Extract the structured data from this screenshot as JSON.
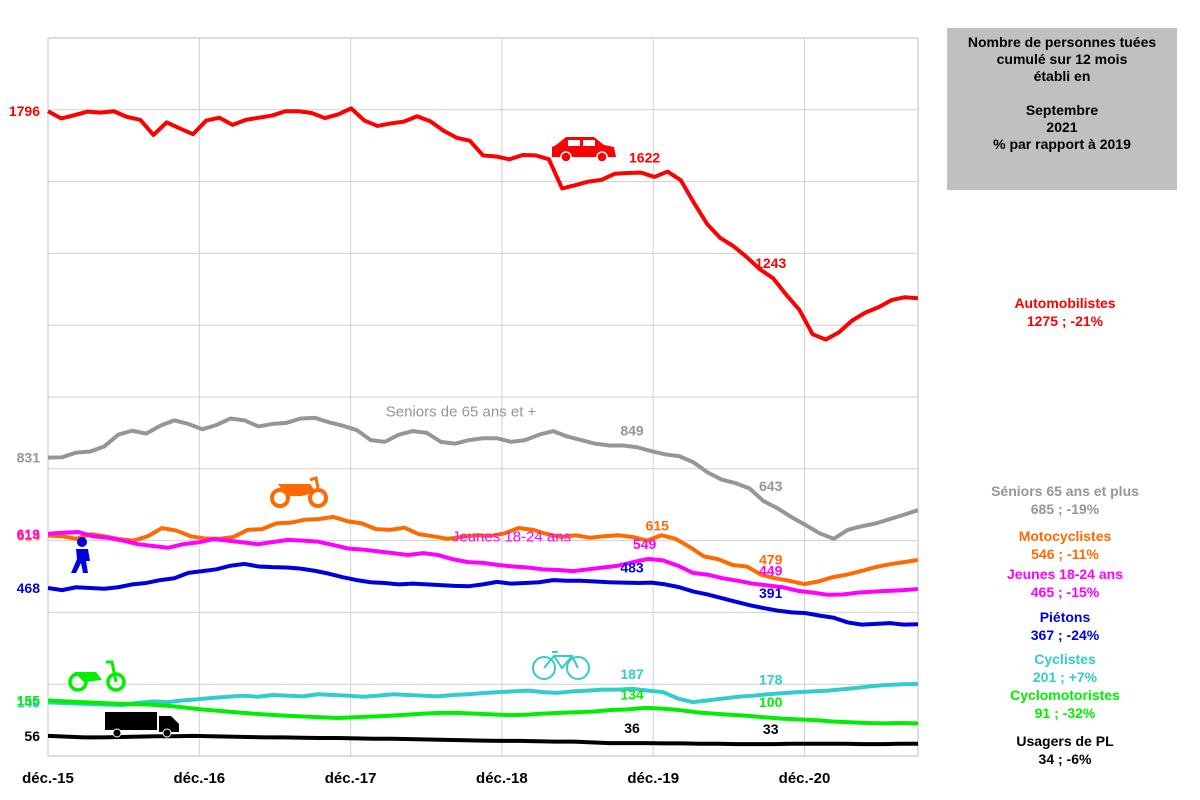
{
  "title_box": {
    "lines": [
      "Nombre de personnes tuées",
      "cumulé sur 12 mois",
      "établi en",
      "",
      "Septembre",
      "2021",
      "% par rapport à 2019"
    ]
  },
  "legend": [
    {
      "name": "Automobilistes",
      "value": "1275 ; -21%",
      "color": "#ff0000"
    },
    {
      "name": "Séniors 65 ans et plus",
      "value": "685 ; -19%",
      "color": "#969696"
    },
    {
      "name": "Motocyclistes",
      "value": "546 ; -11%",
      "color": "#ff6a00"
    },
    {
      "name": "Jeunes 18-24 ans",
      "value": "465 ; -15%",
      "color": "#ff00ff"
    },
    {
      "name": "Piétons",
      "value": "367 ; -24%",
      "color": "#0000dd"
    },
    {
      "name": "Cyclistes",
      "value": "201 ; +7%",
      "color": "#33cccc"
    },
    {
      "name": "Cyclomotoristes",
      "value": "91 ; -32%",
      "color": "#00ee00"
    },
    {
      "name": "Usagers de PL",
      "value": "34 ; -6%",
      "color": "#000000"
    }
  ],
  "icons": [
    "car-icon",
    "motorcycle-icon",
    "pedestrian-icon",
    "moped-icon",
    "truck-icon",
    "bicycle-icon"
  ],
  "chart_data": {
    "type": "line",
    "x_ticks": [
      "déc.-15",
      "déc.-16",
      "déc.-17",
      "déc.-18",
      "déc.-19",
      "déc.-20"
    ],
    "x_range": [
      "2015-12",
      "2021-09"
    ],
    "ylim": [
      0,
      2000
    ],
    "grid": true,
    "series": [
      {
        "name": "Automobilistes",
        "color": "#ff0000",
        "values": [
          1796,
          1776,
          1785,
          1795,
          1792,
          1796,
          1780,
          1772,
          1730,
          1765,
          1748,
          1732,
          1770,
          1778,
          1758,
          1772,
          1778,
          1784,
          1796,
          1796,
          1791,
          1777,
          1787,
          1804,
          1770,
          1755,
          1762,
          1767,
          1782,
          1768,
          1742,
          1722,
          1714,
          1673,
          1670,
          1662,
          1674,
          1673,
          1662,
          1581,
          1590,
          1600,
          1605,
          1622,
          1624,
          1625,
          1613,
          1628,
          1604,
          1541,
          1482,
          1443,
          1420,
          1390,
          1356,
          1331,
          1285,
          1243,
          1175,
          1160,
          1180,
          1213,
          1235,
          1250,
          1270,
          1278,
          1275
        ],
        "labels": [
          {
            "x": 0,
            "text": "1796"
          },
          {
            "x": 47,
            "text": "1622"
          },
          {
            "x": 57,
            "text": "1243"
          }
        ]
      },
      {
        "name": "Seniors de 65 ans et +",
        "color": "#969696",
        "values": [
          831,
          832,
          845,
          848,
          862,
          895,
          906,
          898,
          920,
          935,
          925,
          910,
          922,
          940,
          935,
          918,
          925,
          928,
          940,
          942,
          930,
          920,
          908,
          880,
          875,
          895,
          905,
          900,
          875,
          870,
          880,
          885,
          885,
          875,
          880,
          895,
          905,
          890,
          880,
          870,
          865,
          865,
          860,
          849,
          840,
          835,
          818,
          790,
          770,
          760,
          745,
          710,
          690,
          665,
          643,
          620,
          605,
          630,
          640,
          648,
          660,
          672,
          685
        ],
        "labels": [
          {
            "x": 0,
            "text": "831"
          },
          {
            "x": 46,
            "text": "849"
          },
          {
            "x": 57,
            "text": "643"
          }
        ],
        "inline_label": {
          "x": 28,
          "text": "Seniors de 65 ans et +"
        }
      },
      {
        "name": "Motocyclistes",
        "color": "#ff6a00",
        "values": [
          614,
          612,
          605,
          618,
          612,
          604,
          600,
          612,
          635,
          628,
          612,
          606,
          605,
          610,
          630,
          632,
          648,
          650,
          658,
          660,
          666,
          654,
          648,
          632,
          630,
          636,
          618,
          612,
          605,
          610,
          615,
          613,
          620,
          635,
          630,
          618,
          610,
          615,
          608,
          612,
          615,
          610,
          600,
          615,
          605,
          582,
          556,
          548,
          532,
          528,
          505,
          495,
          488,
          479,
          486,
          498,
          505,
          515,
          526,
          534,
          540,
          546
        ],
        "labels": [
          {
            "x": 0,
            "text": "614"
          },
          {
            "x": 48,
            "text": "615"
          },
          {
            "x": 57,
            "text": "479"
          }
        ]
      },
      {
        "name": "Jeunes 18-24 ans",
        "color": "#ff00ff",
        "values": [
          619,
          622,
          624,
          612,
          608,
          600,
          590,
          585,
          580,
          590,
          595,
          604,
          600,
          595,
          590,
          596,
          602,
          600,
          597,
          588,
          578,
          575,
          570,
          565,
          560,
          565,
          560,
          548,
          540,
          538,
          532,
          528,
          525,
          520,
          518,
          515,
          520,
          525,
          530,
          540,
          549,
          545,
          530,
          510,
          505,
          495,
          488,
          480,
          475,
          470,
          460,
          455,
          449,
          450,
          455,
          458,
          460,
          462,
          465
        ],
        "labels": [
          {
            "x": 0,
            "text": "619"
          },
          {
            "x": 47,
            "text": "549"
          },
          {
            "x": 57,
            "text": "449"
          }
        ],
        "inline_label": {
          "x": 32,
          "text": "Jeunes 18-24 ans"
        }
      },
      {
        "name": "Piétons",
        "color": "#0000dd",
        "values": [
          468,
          462,
          470,
          468,
          466,
          470,
          478,
          482,
          490,
          495,
          510,
          515,
          520,
          530,
          535,
          528,
          526,
          525,
          522,
          516,
          508,
          498,
          490,
          484,
          482,
          478,
          480,
          478,
          476,
          474,
          473,
          478,
          485,
          480,
          482,
          484,
          490,
          488,
          488,
          486,
          484,
          483,
          482,
          483,
          478,
          470,
          458,
          450,
          440,
          430,
          420,
          412,
          405,
          400,
          398,
          391,
          385,
          372,
          366,
          368,
          370,
          366,
          367
        ],
        "labels": [
          {
            "x": 0,
            "text": "468"
          },
          {
            "x": 46,
            "text": "483"
          },
          {
            "x": 57,
            "text": "391"
          }
        ]
      },
      {
        "name": "Cyclistes",
        "color": "#33cccc",
        "values": [
          149,
          148,
          146,
          145,
          143,
          142,
          148,
          152,
          150,
          155,
          158,
          162,
          165,
          168,
          165,
          170,
          168,
          166,
          172,
          170,
          168,
          165,
          168,
          172,
          170,
          168,
          166,
          170,
          172,
          175,
          178,
          180,
          182,
          178,
          176,
          180,
          182,
          185,
          185,
          187,
          182,
          178,
          160,
          150,
          155,
          160,
          165,
          168,
          172,
          175,
          178,
          180,
          182,
          186,
          190,
          195,
          198,
          200,
          201
        ],
        "labels": [
          {
            "x": 0,
            "text": "149"
          },
          {
            "x": 46,
            "text": "187"
          },
          {
            "x": 57,
            "text": "178"
          }
        ]
      },
      {
        "name": "Cyclomotoristes",
        "color": "#00ee00",
        "values": [
          155,
          152,
          150,
          148,
          146,
          145,
          143,
          140,
          135,
          130,
          126,
          122,
          118,
          115,
          112,
          110,
          108,
          106,
          108,
          110,
          112,
          115,
          118,
          120,
          120,
          118,
          116,
          114,
          115,
          118,
          120,
          122,
          124,
          128,
          130,
          134,
          132,
          128,
          122,
          118,
          115,
          112,
          108,
          104,
          102,
          100,
          96,
          94,
          92,
          91,
          92,
          91
        ],
        "labels": [
          {
            "x": 0,
            "text": "155"
          },
          {
            "x": 46,
            "text": "134"
          },
          {
            "x": 57,
            "text": "100"
          }
        ]
      },
      {
        "name": "Usagers de PL",
        "color": "#000000",
        "values": [
          56,
          54,
          52,
          52,
          53,
          54,
          55,
          55,
          56,
          55,
          54,
          53,
          52,
          52,
          51,
          50,
          50,
          49,
          48,
          48,
          47,
          46,
          45,
          44,
          43,
          42,
          42,
          41,
          40,
          40,
          38,
          36,
          36,
          36,
          35,
          35,
          34,
          34,
          33,
          33,
          33,
          34,
          34,
          34,
          34,
          33,
          33,
          34,
          34
        ],
        "labels": [
          {
            "x": 0,
            "text": "56"
          },
          {
            "x": 46,
            "text": "36"
          },
          {
            "x": 57,
            "text": "33"
          }
        ]
      }
    ]
  }
}
